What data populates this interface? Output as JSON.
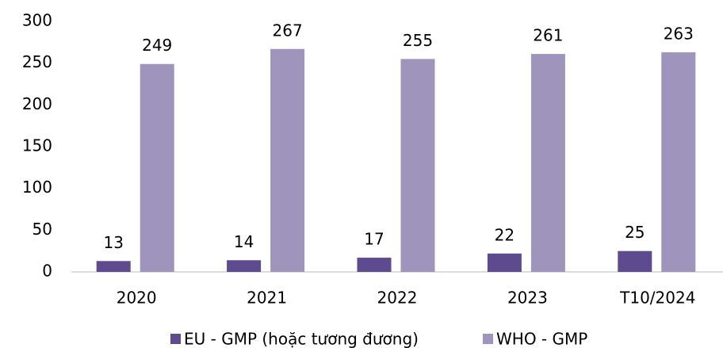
{
  "chart_data": {
    "type": "bar",
    "categories": [
      "2020",
      "2021",
      "2022",
      "2023",
      "T10/2024"
    ],
    "series": [
      {
        "name": "EU - GMP (hoặc tương đương)",
        "color": "#5e4a8e",
        "values": [
          13,
          14,
          17,
          22,
          25
        ]
      },
      {
        "name": "WHO - GMP",
        "color": "#9f95bc",
        "values": [
          249,
          267,
          255,
          261,
          263
        ]
      }
    ],
    "ylim": [
      0,
      300
    ],
    "yticks": [
      0,
      50,
      100,
      150,
      200,
      250,
      300
    ],
    "grid": false,
    "legend": "bottom"
  }
}
